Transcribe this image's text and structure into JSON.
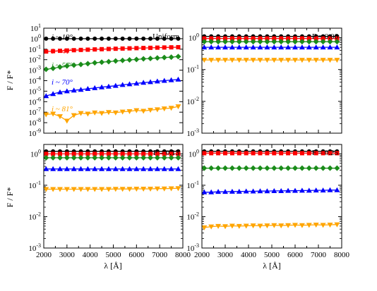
{
  "figure": {
    "ylabel": "F / F*",
    "xlabel": "λ [Å]"
  },
  "chart_data": [
    {
      "type": "line",
      "panel": "top-left",
      "label": "Uniform",
      "yscale": "log",
      "xlim": [
        2000,
        8000
      ],
      "ylim_exp": [
        -9,
        1
      ],
      "xticks": [
        2000,
        3000,
        4000,
        5000,
        6000,
        7000,
        8000
      ],
      "ytick_exps": [
        -9,
        -8,
        -7,
        -6,
        -5,
        -4,
        -3,
        -2,
        -1,
        0,
        1
      ],
      "x": [
        2100,
        2400,
        2700,
        3000,
        3300,
        3600,
        3900,
        4200,
        4500,
        4800,
        5100,
        5400,
        5700,
        6000,
        6300,
        6600,
        6900,
        7200,
        7500,
        7800
      ],
      "series": [
        {
          "name": "i ~ 19°",
          "color": "#000000",
          "marker": "circle",
          "values": [
            1,
            1,
            1,
            1,
            1,
            1,
            1,
            1,
            1,
            1,
            1,
            1,
            1,
            1,
            1,
            1,
            1,
            1,
            1,
            1
          ]
        },
        {
          "name": "i ~ 41°",
          "color": "#ff0000",
          "marker": "square",
          "values": [
            0.06,
            0.065,
            0.07,
            0.075,
            0.08,
            0.085,
            0.09,
            0.095,
            0.1,
            0.105,
            0.11,
            0.115,
            0.12,
            0.125,
            0.13,
            0.135,
            0.14,
            0.145,
            0.15,
            0.155
          ]
        },
        {
          "name": "i ~ 57°",
          "color": "#1a8c1a",
          "marker": "diamond",
          "values": [
            0.0012,
            0.0015,
            0.002,
            0.0025,
            0.003,
            0.0035,
            0.0042,
            0.005,
            0.0058,
            0.0065,
            0.0075,
            0.0085,
            0.0095,
            0.0105,
            0.012,
            0.013,
            0.0145,
            0.016,
            0.0175,
            0.02
          ]
        },
        {
          "name": "i ~ 70°",
          "color": "#0000ff",
          "marker": "triangle-up",
          "values": [
            3.5e-06,
            5.5e-06,
            8e-06,
            1e-05,
            1.2e-05,
            1.4e-05,
            1.7e-05,
            2e-05,
            2.4e-05,
            2.8e-05,
            3.3e-05,
            4e-05,
            4.7e-05,
            5.5e-05,
            6.5e-05,
            7.5e-05,
            8.8e-05,
            0.0001,
            0.000115,
            0.00013
          ]
        },
        {
          "name": "i ~ 81°",
          "color": "#ffa500",
          "marker": "triangle-down",
          "values": [
            6e-08,
            7e-08,
            4e-08,
            1.5e-08,
            5e-08,
            8e-08,
            7e-08,
            9e-08,
            8e-08,
            1e-07,
            9e-08,
            1.1e-07,
            1.2e-07,
            1.5e-07,
            1.3e-07,
            1.6e-07,
            1.8e-07,
            2.2e-07,
            2.5e-07,
            3.5e-07
          ]
        }
      ]
    },
    {
      "type": "line",
      "panel": "top-right",
      "label": "F = 0.06",
      "yscale": "log",
      "xlim": [
        2000,
        8000
      ],
      "ylim_exp": [
        -3,
        0.3
      ],
      "xticks": [
        2000,
        3000,
        4000,
        5000,
        6000,
        7000,
        8000
      ],
      "ytick_exps": [
        -3,
        -2,
        -1,
        0
      ],
      "x": [
        2100,
        2400,
        2700,
        3000,
        3300,
        3600,
        3900,
        4200,
        4500,
        4800,
        5100,
        5400,
        5700,
        6000,
        6300,
        6600,
        6900,
        7200,
        7500,
        7800
      ],
      "series": [
        {
          "name": "i ~ 19°",
          "color": "#000000",
          "marker": "circle",
          "values": [
            1.1,
            1.1,
            1.1,
            1.1,
            1.1,
            1.1,
            1.1,
            1.1,
            1.1,
            1.1,
            1.1,
            1.1,
            1.1,
            1.1,
            1.1,
            1.1,
            1.1,
            1.1,
            1.1,
            1.1
          ]
        },
        {
          "name": "i ~ 41°",
          "color": "#ff0000",
          "marker": "square",
          "values": [
            0.95,
            0.95,
            0.95,
            0.95,
            0.95,
            0.95,
            0.95,
            0.95,
            0.95,
            0.95,
            0.95,
            0.95,
            0.95,
            0.95,
            0.95,
            0.95,
            0.95,
            0.95,
            0.95,
            0.95
          ]
        },
        {
          "name": "i ~ 57°",
          "color": "#1a8c1a",
          "marker": "diamond",
          "values": [
            0.75,
            0.75,
            0.75,
            0.75,
            0.75,
            0.75,
            0.75,
            0.75,
            0.75,
            0.75,
            0.75,
            0.75,
            0.75,
            0.75,
            0.75,
            0.75,
            0.75,
            0.75,
            0.75,
            0.75
          ]
        },
        {
          "name": "i ~ 70°",
          "color": "#0000ff",
          "marker": "triangle-up",
          "values": [
            0.5,
            0.5,
            0.5,
            0.5,
            0.5,
            0.5,
            0.5,
            0.5,
            0.5,
            0.5,
            0.5,
            0.5,
            0.5,
            0.5,
            0.5,
            0.5,
            0.5,
            0.5,
            0.5,
            0.5
          ]
        },
        {
          "name": "i ~ 81°",
          "color": "#ffa500",
          "marker": "triangle-down",
          "values": [
            0.2,
            0.2,
            0.2,
            0.2,
            0.2,
            0.2,
            0.2,
            0.2,
            0.2,
            0.2,
            0.2,
            0.2,
            0.2,
            0.2,
            0.2,
            0.2,
            0.2,
            0.2,
            0.2,
            0.2
          ]
        }
      ]
    },
    {
      "type": "line",
      "panel": "bottom-left",
      "label": "F = 0.13",
      "yscale": "log",
      "xlim": [
        2000,
        8000
      ],
      "ylim_exp": [
        -3,
        0.3
      ],
      "xticks": [
        2000,
        3000,
        4000,
        5000,
        6000,
        7000,
        8000
      ],
      "ytick_exps": [
        -3,
        -2,
        -1,
        0
      ],
      "x": [
        2100,
        2400,
        2700,
        3000,
        3300,
        3600,
        3900,
        4200,
        4500,
        4800,
        5100,
        5400,
        5700,
        6000,
        6300,
        6600,
        6900,
        7200,
        7500,
        7800
      ],
      "series": [
        {
          "name": "i ~ 19°",
          "color": "#000000",
          "marker": "circle",
          "values": [
            1.2,
            1.2,
            1.2,
            1.2,
            1.2,
            1.2,
            1.2,
            1.2,
            1.2,
            1.2,
            1.2,
            1.2,
            1.2,
            1.2,
            1.2,
            1.2,
            1.2,
            1.2,
            1.2,
            1.2
          ]
        },
        {
          "name": "i ~ 41°",
          "color": "#ff0000",
          "marker": "square",
          "values": [
            1.0,
            1.0,
            1.0,
            1.0,
            1.0,
            1.0,
            1.0,
            1.0,
            1.0,
            1.0,
            1.0,
            1.0,
            1.0,
            1.0,
            1.0,
            1.0,
            1.0,
            1.0,
            1.0,
            1.0
          ]
        },
        {
          "name": "i ~ 57°",
          "color": "#1a8c1a",
          "marker": "diamond",
          "values": [
            0.75,
            0.75,
            0.75,
            0.75,
            0.75,
            0.75,
            0.75,
            0.75,
            0.75,
            0.75,
            0.75,
            0.75,
            0.75,
            0.75,
            0.75,
            0.75,
            0.75,
            0.75,
            0.75,
            0.75
          ]
        },
        {
          "name": "i ~ 70°",
          "color": "#0000ff",
          "marker": "triangle-up",
          "values": [
            0.33,
            0.33,
            0.33,
            0.33,
            0.33,
            0.33,
            0.33,
            0.33,
            0.33,
            0.33,
            0.33,
            0.33,
            0.33,
            0.33,
            0.33,
            0.33,
            0.33,
            0.33,
            0.33,
            0.33
          ]
        },
        {
          "name": "i ~ 81°",
          "color": "#ffa500",
          "marker": "triangle-down",
          "values": [
            0.075,
            0.075,
            0.075,
            0.075,
            0.075,
            0.075,
            0.075,
            0.075,
            0.075,
            0.075,
            0.076,
            0.076,
            0.076,
            0.077,
            0.077,
            0.077,
            0.078,
            0.078,
            0.079,
            0.08
          ]
        }
      ]
    },
    {
      "type": "line",
      "panel": "bottom-right",
      "label": "F = 0.25",
      "yscale": "log",
      "xlim": [
        2000,
        8000
      ],
      "ylim_exp": [
        -3,
        0.3
      ],
      "xticks": [
        2000,
        3000,
        4000,
        5000,
        6000,
        7000,
        8000
      ],
      "ytick_exps": [
        -3,
        -2,
        -1,
        0
      ],
      "x": [
        2100,
        2400,
        2700,
        3000,
        3300,
        3600,
        3900,
        4200,
        4500,
        4800,
        5100,
        5400,
        5700,
        6000,
        6300,
        6600,
        6900,
        7200,
        7500,
        7800
      ],
      "series": [
        {
          "name": "i ~ 19°",
          "color": "#000000",
          "marker": "circle",
          "values": [
            1.2,
            1.2,
            1.2,
            1.2,
            1.2,
            1.2,
            1.2,
            1.2,
            1.2,
            1.2,
            1.2,
            1.2,
            1.2,
            1.2,
            1.2,
            1.2,
            1.2,
            1.2,
            1.2,
            1.2
          ]
        },
        {
          "name": "i ~ 41°",
          "color": "#ff0000",
          "marker": "square",
          "values": [
            1.05,
            1.05,
            1.05,
            1.05,
            1.05,
            1.05,
            1.05,
            1.05,
            1.05,
            1.05,
            1.05,
            1.05,
            1.05,
            1.05,
            1.05,
            1.05,
            1.05,
            1.05,
            1.05,
            1.05
          ]
        },
        {
          "name": "i ~ 57°",
          "color": "#1a8c1a",
          "marker": "diamond",
          "values": [
            0.35,
            0.35,
            0.35,
            0.35,
            0.35,
            0.35,
            0.35,
            0.35,
            0.35,
            0.35,
            0.35,
            0.35,
            0.35,
            0.35,
            0.35,
            0.35,
            0.35,
            0.35,
            0.35,
            0.35
          ]
        },
        {
          "name": "i ~ 70°",
          "color": "#0000ff",
          "marker": "triangle-up",
          "values": [
            0.06,
            0.06,
            0.062,
            0.062,
            0.063,
            0.063,
            0.064,
            0.064,
            0.065,
            0.065,
            0.066,
            0.066,
            0.067,
            0.067,
            0.068,
            0.068,
            0.069,
            0.069,
            0.07,
            0.07
          ]
        },
        {
          "name": "i ~ 81°",
          "color": "#ffa500",
          "marker": "triangle-down",
          "values": [
            0.0045,
            0.0048,
            0.005,
            0.0049,
            0.0051,
            0.005,
            0.0051,
            0.0052,
            0.0051,
            0.0052,
            0.0053,
            0.0052,
            0.0053,
            0.0054,
            0.0053,
            0.0054,
            0.0055,
            0.0054,
            0.0055,
            0.0056
          ]
        }
      ]
    }
  ]
}
